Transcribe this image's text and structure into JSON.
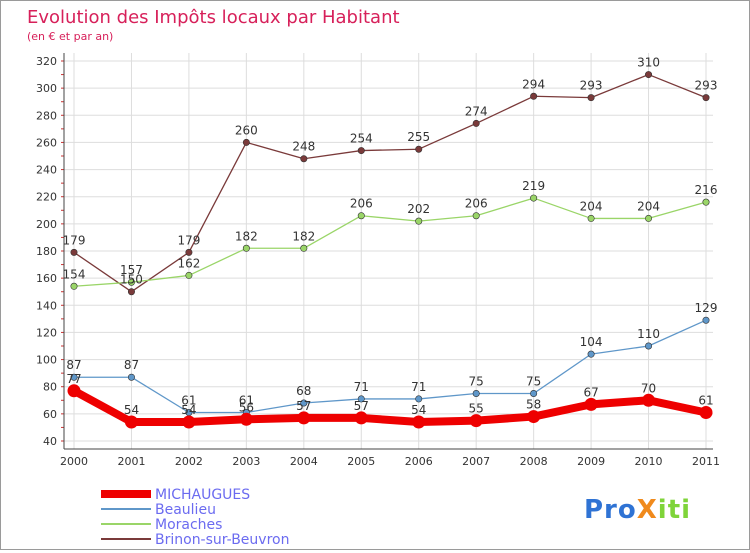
{
  "colors": {
    "title": "#d7205a",
    "michaugues": "#ee0000",
    "beaulieu": "#5f97c9",
    "moraches": "#9ad568",
    "brinon": "#7a3a3a",
    "legend_text": "#6b6bf0",
    "logo_p": "#2f73d4",
    "logo_x": "#f08a1c",
    "logo_dots": "#7fd43a"
  },
  "logo": {
    "text": "ProXiti",
    "parts": [
      "Pro",
      "X",
      "iti"
    ]
  },
  "chart_data": {
    "type": "line",
    "title": "Evolution des Impôts locaux par Habitant",
    "subtitle": "(en € et par an)",
    "xlabel": "",
    "ylabel": "",
    "categories": [
      "2000",
      "2001",
      "2002",
      "2003",
      "2004",
      "2005",
      "2006",
      "2007",
      "2008",
      "2009",
      "2010",
      "2011"
    ],
    "ylim": [
      40,
      320
    ],
    "yticks": [
      "40",
      "60",
      "80",
      "100",
      "120",
      "140",
      "160",
      "180",
      "200",
      "220",
      "240",
      "260",
      "280",
      "300",
      "320"
    ],
    "grid": true,
    "legend_position": "bottom-left",
    "series": [
      {
        "name": "MICHAUGUES",
        "key": "michaugues",
        "values": [
          77,
          54,
          54,
          56,
          57,
          57,
          54,
          55,
          58,
          67,
          70,
          61
        ],
        "labels": [
          "77",
          "54",
          "54",
          "56",
          "57",
          "57",
          "54",
          "55",
          "58",
          "67",
          "70",
          "61"
        ]
      },
      {
        "name": "Beaulieu",
        "key": "beaulieu",
        "values": [
          87,
          87,
          61,
          61,
          68,
          71,
          71,
          75,
          75,
          104,
          110,
          129
        ],
        "labels": [
          "87",
          "87",
          "61",
          "61",
          "68",
          "71",
          "71",
          "75",
          "75",
          "104",
          "110",
          "129"
        ]
      },
      {
        "name": "Moraches",
        "key": "moraches",
        "values": [
          154,
          157,
          162,
          182,
          182,
          206,
          202,
          206,
          219,
          204,
          204,
          216
        ],
        "labels": [
          "154",
          "157",
          "162",
          "182",
          "182",
          "206",
          "202",
          "206",
          "219",
          "204",
          "204",
          "216"
        ]
      },
      {
        "name": "Brinon-sur-Beuvron",
        "key": "brinon",
        "values": [
          179,
          150,
          179,
          260,
          248,
          254,
          255,
          274,
          294,
          293,
          310,
          293
        ],
        "labels": [
          "179",
          "150",
          "179",
          "260",
          "248",
          "254",
          "255",
          "274",
          "294",
          "293",
          "310",
          "293"
        ]
      }
    ]
  }
}
